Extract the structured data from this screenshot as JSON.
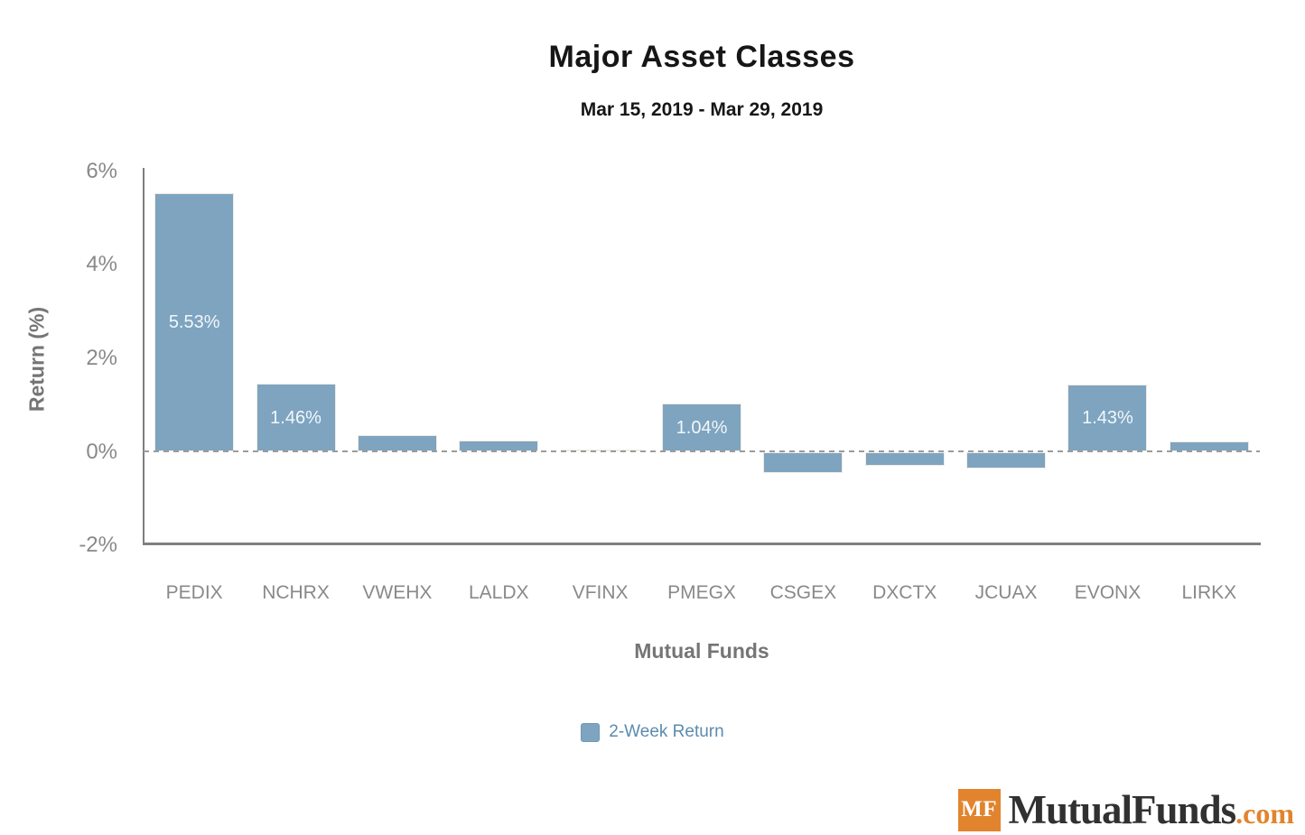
{
  "chart": {
    "colors": {
      "bar": "#7ea4c0",
      "bar_border": "#f0ece5",
      "value_label": "#f2f7fa",
      "axis": "#7f7f7f",
      "tick_label": "#898989",
      "axis_title": "#757575",
      "zero_line": "#9b9b9b",
      "legend_text": "#5b8cae",
      "title": "#161616",
      "logo_orange": "#e2842e",
      "logo_text": "#313131"
    }
  },
  "chart_data": {
    "type": "bar",
    "title": "Major Asset Classes",
    "subtitle": "Mar 15, 2019 - Mar 29, 2019",
    "xlabel": "Mutual Funds",
    "ylabel": "Return (%)",
    "ylim": [
      -2,
      6
    ],
    "grid": "zero-dashed-line-only",
    "legend_position": "bottom-center",
    "legend": [
      "2-Week Return"
    ],
    "categories": [
      "PEDIX",
      "NCHRX",
      "VWEHX",
      "LALDX",
      "VFINX",
      "PMEGX",
      "CSGEX",
      "DXCTX",
      "JCUAX",
      "EVONX",
      "LIRKX"
    ],
    "series": [
      {
        "name": "2-Week Return",
        "values": [
          5.53,
          1.46,
          0.36,
          0.24,
          0.05,
          1.04,
          -0.45,
          -0.29,
          -0.36,
          1.43,
          0.22
        ]
      }
    ],
    "bar_labels": [
      "5.53%",
      "1.46%",
      "",
      "",
      "",
      "1.04%",
      "",
      "",
      "",
      "1.43%",
      ""
    ],
    "y_ticks": [
      {
        "value": 6,
        "label": "6%"
      },
      {
        "value": 4,
        "label": "4%"
      },
      {
        "value": 2,
        "label": "2%"
      },
      {
        "value": 0,
        "label": "0%"
      },
      {
        "value": -2,
        "label": "-2%"
      }
    ]
  },
  "footer": {
    "badge": "MF",
    "brand": "MutualFunds",
    "tld": ".com"
  }
}
